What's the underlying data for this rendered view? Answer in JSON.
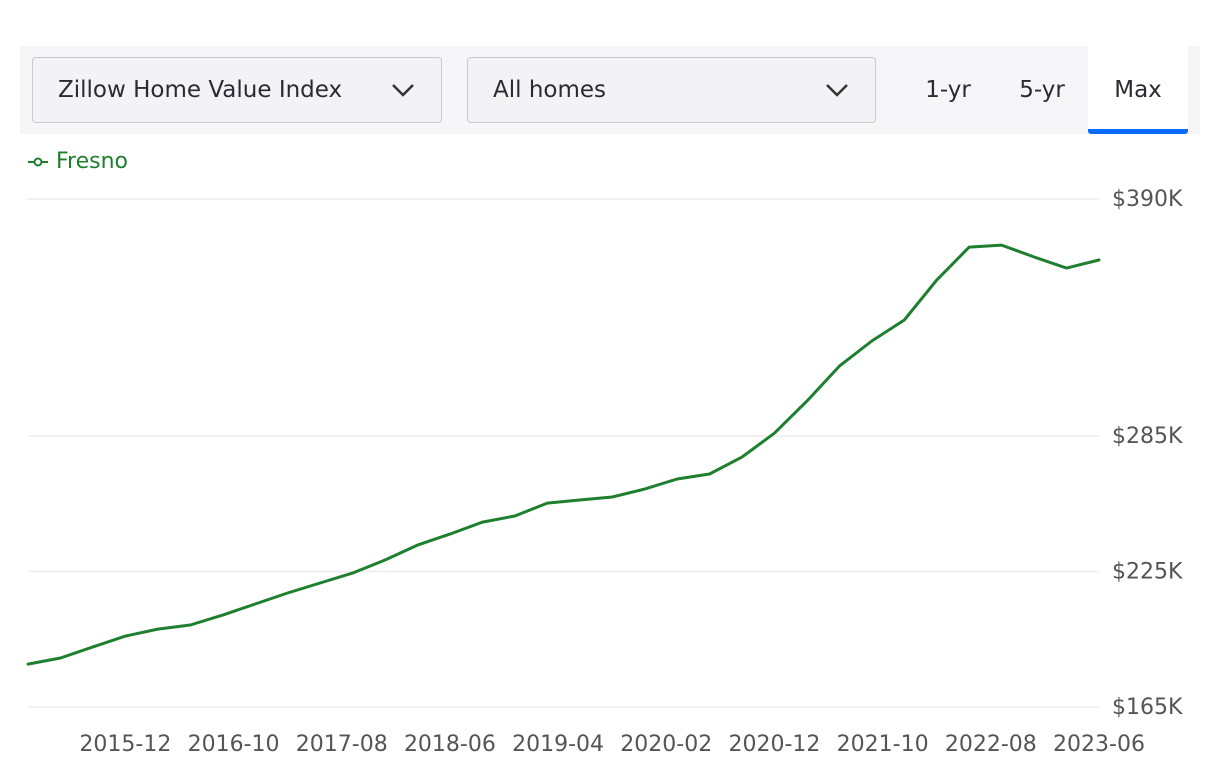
{
  "controls": {
    "metric": "Zillow Home Value Index",
    "home_type": "All homes",
    "ranges": [
      "1-yr",
      "5-yr",
      "Max"
    ],
    "selected": "Max"
  },
  "chart_data": {
    "type": "line",
    "x": [
      "2015-03",
      "2015-06",
      "2015-09",
      "2015-12",
      "2016-03",
      "2016-06",
      "2016-09",
      "2016-12",
      "2017-03",
      "2017-06",
      "2017-09",
      "2017-12",
      "2018-03",
      "2018-06",
      "2018-09",
      "2018-12",
      "2019-03",
      "2019-06",
      "2019-09",
      "2019-12",
      "2020-03",
      "2020-06",
      "2020-09",
      "2020-12",
      "2021-03",
      "2021-06",
      "2021-09",
      "2021-12",
      "2022-03",
      "2022-06",
      "2022-09",
      "2022-12",
      "2023-03",
      "2023-06"
    ],
    "series": [
      {
        "name": "Fresno",
        "color": "#1e7f2e",
        "values": [
          184000,
          186700,
          191600,
          196400,
          199500,
          201300,
          205700,
          210600,
          215500,
          219900,
          224300,
          230100,
          236700,
          241600,
          246900,
          249600,
          255300,
          256700,
          258000,
          261500,
          266000,
          268200,
          275700,
          286300,
          300500,
          316000,
          327100,
          336400,
          354100,
          368700,
          369600,
          364300,
          359400,
          363000
        ]
      }
    ],
    "xlim": [
      "2015-03",
      "2023-06"
    ],
    "xticks": [
      "2015-12",
      "2016-10",
      "2017-08",
      "2018-06",
      "2019-04",
      "2020-02",
      "2020-12",
      "2021-10",
      "2022-08",
      "2023-06"
    ],
    "ylim": [
      165000,
      390000
    ],
    "yticks": [
      {
        "value": 165000,
        "label": "$165K"
      },
      {
        "value": 225000,
        "label": "$225K"
      },
      {
        "value": 285000,
        "label": "$285K"
      },
      {
        "value": 390000,
        "label": "$390K"
      }
    ],
    "grid": true,
    "legend": "top-left"
  }
}
